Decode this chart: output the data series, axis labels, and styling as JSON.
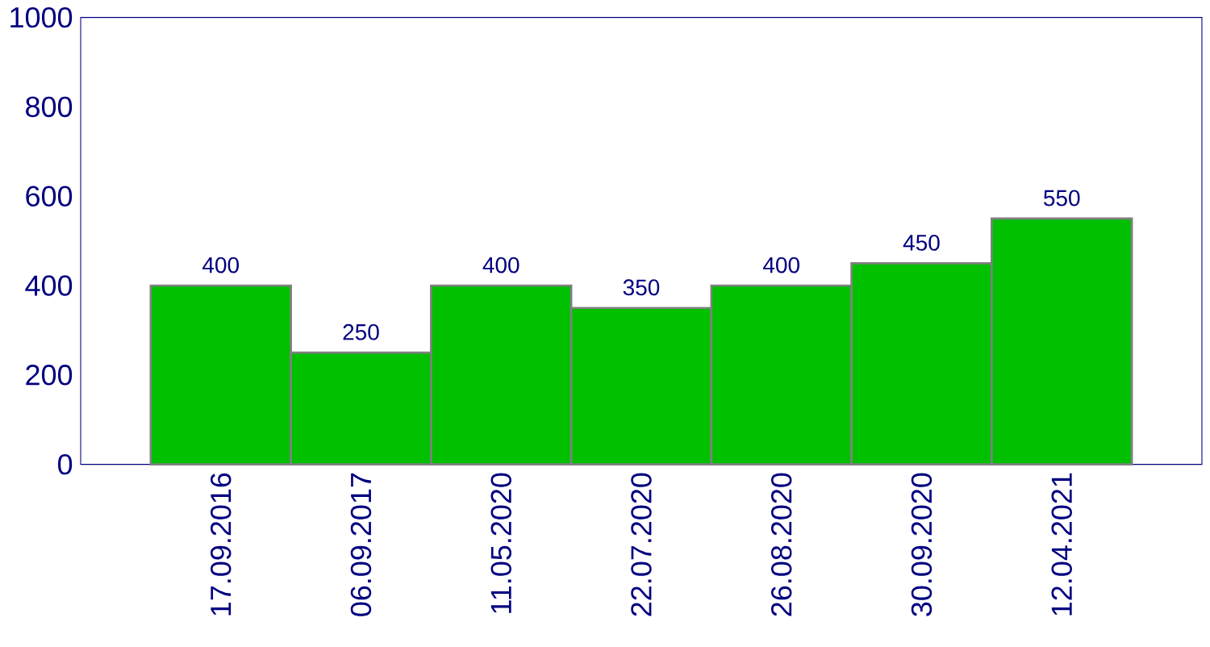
{
  "chart_data": {
    "type": "bar",
    "categories": [
      "17.09.2016",
      "06.09.2017",
      "11.05.2020",
      "22.07.2020",
      "26.08.2020",
      "30.09.2020",
      "12.04.2021"
    ],
    "values": [
      400,
      250,
      400,
      350,
      400,
      450,
      550
    ],
    "color": "#00c000",
    "ylim": [
      0,
      1000
    ],
    "yticks": [
      0,
      200,
      400,
      600,
      800,
      1000
    ],
    "data_labels": true
  }
}
